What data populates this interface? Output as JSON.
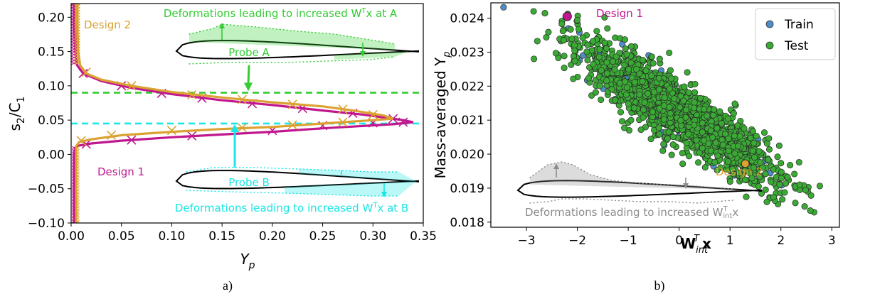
{
  "colors": {
    "design1": "#c0178f",
    "design2": "#dba131",
    "probeA": "#33cc33",
    "probeB": "#19e6e6",
    "train": "#4f8dc8",
    "test": "#3aaa35",
    "gray": "#8c8c8c"
  },
  "chart_data": [
    {
      "type": "line",
      "panel_label": "a)",
      "xlabel": "Y",
      "xlabel_sub": "p",
      "ylabel": "s",
      "ylabel_sub1": "2",
      "ylabel_mid": "/C",
      "ylabel_sub2": "1",
      "xlim": [
        0,
        0.35
      ],
      "ylim": [
        -0.1,
        0.22
      ],
      "xticks": [
        "0.00",
        "0.05",
        "0.10",
        "0.15",
        "0.20",
        "0.25",
        "0.30",
        "0.35"
      ],
      "yticks": [
        "−0.10",
        "−0.05",
        "0.00",
        "0.05",
        "0.10",
        "0.15",
        "0.20"
      ],
      "xtick_values": [
        0,
        0.05,
        0.1,
        0.15,
        0.2,
        0.25,
        0.3,
        0.35
      ],
      "ytick_values": [
        -0.1,
        -0.05,
        0,
        0.05,
        0.1,
        0.15,
        0.2
      ],
      "hlines": [
        {
          "name": "probe-a-line",
          "y": 0.09,
          "color": "probeA"
        },
        {
          "name": "probe-b-line",
          "y": 0.045,
          "color": "probeB"
        }
      ],
      "series": [
        {
          "name": "Design 1",
          "color": "design1",
          "upper": [
            [
              0.003,
              0.22
            ],
            [
              0.003,
              0.19
            ],
            [
              0.004,
              0.15
            ],
            [
              0.006,
              0.13
            ],
            [
              0.012,
              0.118
            ],
            [
              0.03,
              0.107
            ],
            [
              0.06,
              0.097
            ],
            [
              0.1,
              0.088
            ],
            [
              0.15,
              0.079
            ],
            [
              0.2,
              0.072
            ],
            [
              0.25,
              0.064
            ],
            [
              0.29,
              0.058
            ],
            [
              0.33,
              0.05
            ],
            [
              0.34,
              0.047
            ]
          ],
          "lower": [
            [
              0.34,
              0.047
            ],
            [
              0.32,
              0.044
            ],
            [
              0.25,
              0.038
            ],
            [
              0.2,
              0.033
            ],
            [
              0.15,
              0.029
            ],
            [
              0.1,
              0.025
            ],
            [
              0.05,
              0.02
            ],
            [
              0.02,
              0.016
            ],
            [
              0.008,
              0.013
            ],
            [
              0.004,
              0.01
            ],
            [
              0.003,
              0.0
            ],
            [
              0.003,
              -0.05
            ],
            [
              0.003,
              -0.1
            ]
          ],
          "markers": [
            [
              0.012,
              0.118
            ],
            [
              0.05,
              0.1
            ],
            [
              0.09,
              0.089
            ],
            [
              0.13,
              0.082
            ],
            [
              0.18,
              0.074
            ],
            [
              0.23,
              0.067
            ],
            [
              0.28,
              0.06
            ],
            [
              0.32,
              0.052
            ],
            [
              0.3,
              0.046
            ],
            [
              0.33,
              0.047
            ],
            [
              0.25,
              0.042
            ],
            [
              0.2,
              0.035
            ],
            [
              0.12,
              0.027
            ],
            [
              0.06,
              0.021
            ],
            [
              0.015,
              0.015
            ]
          ]
        },
        {
          "name": "Design 2",
          "color": "design2",
          "upper": [
            [
              0.006,
              0.22
            ],
            [
              0.006,
              0.19
            ],
            [
              0.007,
              0.15
            ],
            [
              0.009,
              0.13
            ],
            [
              0.015,
              0.118
            ],
            [
              0.03,
              0.109
            ],
            [
              0.06,
              0.1
            ],
            [
              0.1,
              0.091
            ],
            [
              0.15,
              0.083
            ],
            [
              0.2,
              0.076
            ],
            [
              0.25,
              0.07
            ],
            [
              0.28,
              0.064
            ],
            [
              0.31,
              0.057
            ],
            [
              0.32,
              0.052
            ]
          ],
          "lower": [
            [
              0.32,
              0.052
            ],
            [
              0.3,
              0.05
            ],
            [
              0.25,
              0.045
            ],
            [
              0.2,
              0.04
            ],
            [
              0.15,
              0.037
            ],
            [
              0.1,
              0.033
            ],
            [
              0.05,
              0.028
            ],
            [
              0.02,
              0.022
            ],
            [
              0.008,
              0.018
            ],
            [
              0.005,
              0.012
            ],
            [
              0.005,
              0.0
            ],
            [
              0.005,
              -0.05
            ],
            [
              0.005,
              -0.1
            ]
          ],
          "markers": [
            [
              0.015,
              0.12
            ],
            [
              0.06,
              0.1
            ],
            [
              0.12,
              0.087
            ],
            [
              0.17,
              0.08
            ],
            [
              0.22,
              0.073
            ],
            [
              0.27,
              0.066
            ],
            [
              0.3,
              0.058
            ],
            [
              0.27,
              0.047
            ],
            [
              0.22,
              0.043
            ],
            [
              0.17,
              0.039
            ],
            [
              0.1,
              0.035
            ],
            [
              0.04,
              0.028
            ],
            [
              0.01,
              0.02
            ]
          ]
        }
      ],
      "annotations": {
        "design2_label": "Design 2",
        "design1_label": "Design 1",
        "probeA_label": "Probe A",
        "probeB_label": "Probe B",
        "probeA_caption": "Deformations leading to increased W",
        "probeA_caption_sup": "T",
        "probeA_caption_end": "x at A",
        "probeB_caption": "Deformations leading to increased W",
        "probeB_caption_sup": "T",
        "probeB_caption_end": "x at B"
      }
    },
    {
      "type": "scatter",
      "panel_label": "b)",
      "xlabel": "W",
      "xlabel_sub": "int",
      "xlabel_sup": "T",
      "xlabel_end": "x",
      "ylabel": "Mass-averaged Y",
      "ylabel_sub": "p",
      "xlim": [
        -3.7,
        3.15
      ],
      "ylim": [
        0.01785,
        0.02445
      ],
      "xticks": [
        "−3",
        "−2",
        "−1",
        "0",
        "1",
        "2",
        "3"
      ],
      "yticks": [
        "0.018",
        "0.019",
        "0.020",
        "0.021",
        "0.022",
        "0.023",
        "0.024"
      ],
      "xtick_values": [
        -3,
        -2,
        -1,
        0,
        1,
        2,
        3
      ],
      "ytick_values": [
        0.018,
        0.019,
        0.02,
        0.021,
        0.022,
        0.023,
        0.024
      ],
      "trend": {
        "slope": -0.00092,
        "intercept": 0.0212,
        "x_range": [
          -3.0,
          2.95
        ],
        "spread": 0.00042
      },
      "n_test": 1900,
      "n_train": 130,
      "series_names": [
        "Train",
        "Test"
      ],
      "legend_position": "top-right",
      "train_outlier": [
        -3.45,
        0.02432
      ],
      "highlights": [
        {
          "name": "Design 1",
          "x": -2.2,
          "y": 0.02405,
          "color": "design1"
        },
        {
          "name": "Design 2",
          "x": 1.3,
          "y": 0.01972,
          "color": "design2"
        }
      ],
      "inset_caption": "Deformations leading to increased W",
      "inset_caption_sup": "T",
      "inset_caption_sub": "int",
      "inset_caption_end": "x"
    }
  ]
}
